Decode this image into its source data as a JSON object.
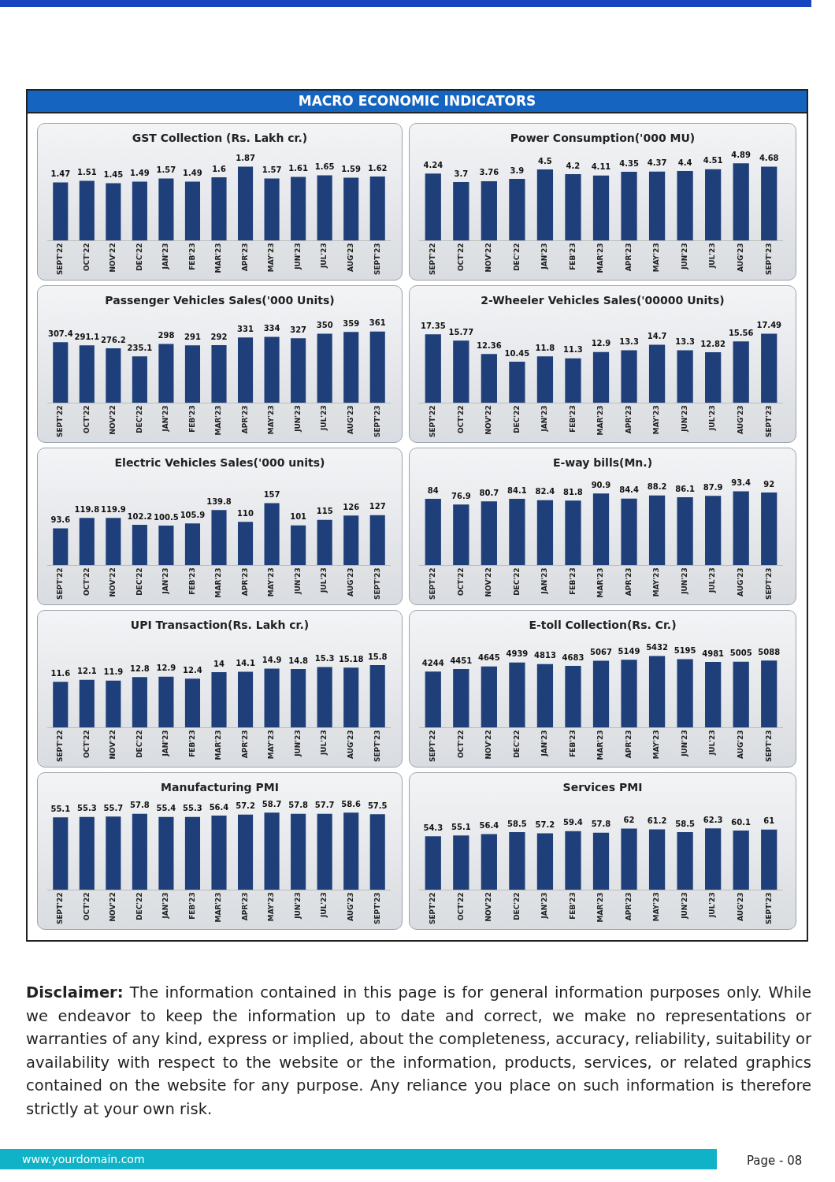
{
  "chart_data": [
    {
      "type": "other",
      "title": "MACRO ECONOMIC INDICATORS"
    },
    {
      "type": "bar",
      "title": "GST Collection (Rs. Lakh cr.)",
      "categories": [
        "SEPT'22",
        "OCT'22",
        "NOV'22",
        "DEC'22",
        "JAN'23",
        "FEB'23",
        "MAR'23",
        "APR'23",
        "MAY'23",
        "JUN'23",
        "JUL'23",
        "AUG'23",
        "SEPT'23"
      ],
      "values": [
        1.47,
        1.51,
        1.45,
        1.49,
        1.57,
        1.49,
        1.6,
        1.87,
        1.57,
        1.61,
        1.65,
        1.59,
        1.62
      ],
      "color": "#1f3f7a",
      "data_labels": true
    },
    {
      "type": "bar",
      "title": "Power Consumption('000 MU)",
      "categories": [
        "SEPT'22",
        "OCT'22",
        "NOV'22",
        "DEC'22",
        "JAN'23",
        "FEB'23",
        "MAR'23",
        "APR'23",
        "MAY'23",
        "JUN'23",
        "JUL'23",
        "AUG'23",
        "SEPT'23"
      ],
      "values": [
        4.24,
        3.7,
        3.76,
        3.9,
        4.5,
        4.2,
        4.11,
        4.35,
        4.37,
        4.4,
        4.51,
        4.89,
        4.68
      ],
      "color": "#1f3f7a",
      "data_labels": true
    },
    {
      "type": "bar",
      "title": "Passenger Vehicles Sales('000 Units)",
      "categories": [
        "SEPT'22",
        "OCT'22",
        "NOV'22",
        "DEC'22",
        "JAN'23",
        "FEB'23",
        "MAR'23",
        "APR'23",
        "MAY'23",
        "JUN'23",
        "JUL'23",
        "AUG'23",
        "SEPT'23"
      ],
      "values": [
        307.4,
        291.1,
        276.2,
        235.1,
        298,
        291,
        292,
        331,
        334,
        327,
        350,
        359,
        361
      ],
      "color": "#1f3f7a",
      "data_labels": true
    },
    {
      "type": "bar",
      "title": "2-Wheeler Vehicles Sales('00000 Units)",
      "categories": [
        "SEPT'22",
        "OCT'22",
        "NOV'22",
        "DEC'22",
        "JAN'23",
        "FEB'23",
        "MAR'23",
        "APR'23",
        "MAY'23",
        "JUN'23",
        "JUL'23",
        "AUG'23",
        "SEPT'23"
      ],
      "values": [
        17.35,
        15.77,
        12.36,
        10.45,
        11.8,
        11.3,
        12.9,
        13.3,
        14.7,
        13.3,
        12.82,
        15.56,
        17.49
      ],
      "color": "#1f3f7a",
      "data_labels": true
    },
    {
      "type": "bar",
      "title": "Electric Vehicles Sales('000 units)",
      "categories": [
        "SEPT'22",
        "OCT'22",
        "NOV'22",
        "DEC'22",
        "JAN'23",
        "FEB'23",
        "MAR'23",
        "APR'23",
        "MAY'23",
        "JUN'23",
        "JUL'23",
        "AUG'23",
        "SEPT'23"
      ],
      "values": [
        93.6,
        119.8,
        119.9,
        102.2,
        100.5,
        105.9,
        139.8,
        110,
        157,
        101,
        115,
        126,
        127
      ],
      "color": "#1f3f7a",
      "data_labels": true
    },
    {
      "type": "bar",
      "title": "E-way bills(Mn.)",
      "categories": [
        "SEPT'22",
        "OCT'22",
        "NOV'22",
        "DEC'22",
        "JAN'23",
        "FEB'23",
        "MAR'23",
        "APR'23",
        "MAY'23",
        "JUN'23",
        "JUL'23",
        "AUG'23",
        "SEPT'23"
      ],
      "values": [
        84,
        76.9,
        80.7,
        84.1,
        82.4,
        81.8,
        90.9,
        84.4,
        88.2,
        86.1,
        87.9,
        93.4,
        92
      ],
      "color": "#1f3f7a",
      "data_labels": true
    },
    {
      "type": "bar",
      "title": "UPI Transaction(Rs. Lakh cr.)",
      "categories": [
        "SEPT'22",
        "OCT'22",
        "NOV'22",
        "DEC'22",
        "JAN'23",
        "FEB'23",
        "MAR'23",
        "APR'23",
        "MAY'23",
        "JUN'23",
        "JUL'23",
        "AUG'23",
        "SEPT'23"
      ],
      "values": [
        11.6,
        12.1,
        11.9,
        12.8,
        12.9,
        12.4,
        14,
        14.1,
        14.9,
        14.8,
        15.3,
        15.18,
        15.8
      ],
      "color": "#1f3f7a",
      "data_labels": true
    },
    {
      "type": "bar",
      "title": "E-toll Collection(Rs. Cr.)",
      "categories": [
        "SEPT'22",
        "OCT'22",
        "NOV'22",
        "DEC'22",
        "JAN'23",
        "FEB'23",
        "MAR'23",
        "APR'23",
        "MAY'23",
        "JUN'23",
        "JUL'23",
        "AUG'23",
        "SEPT'23"
      ],
      "values": [
        4244,
        4451,
        4645,
        4939,
        4813,
        4683,
        5067,
        5149,
        5432,
        5195,
        4981,
        5005,
        5088
      ],
      "color": "#1f3f7a",
      "data_labels": true
    },
    {
      "type": "bar",
      "title": "Manufacturing PMI",
      "categories": [
        "SEPT'22",
        "OCT'22",
        "NOV'22",
        "DEC'22",
        "JAN'23",
        "FEB'23",
        "MAR'23",
        "APR'23",
        "MAY'23",
        "JUN'23",
        "JUL'23",
        "AUG'23",
        "SEPT'23"
      ],
      "values": [
        55.1,
        55.3,
        55.7,
        57.8,
        55.4,
        55.3,
        56.4,
        57.2,
        58.7,
        57.8,
        57.7,
        58.6,
        57.5
      ],
      "color": "#1f3f7a",
      "data_labels": true
    },
    {
      "type": "bar",
      "title": "Services PMI",
      "categories": [
        "SEPT'22",
        "OCT'22",
        "NOV'22",
        "DEC'22",
        "JAN'23",
        "FEB'23",
        "MAR'23",
        "APR'23",
        "MAY'23",
        "JUN'23",
        "JUL'23",
        "AUG'23",
        "SEPT'23"
      ],
      "values": [
        54.3,
        55.1,
        56.4,
        58.5,
        57.2,
        59.4,
        57.8,
        62,
        61.2,
        58.5,
        62.3,
        60.1,
        61
      ],
      "color": "#1f3f7a",
      "data_labels": true
    },
    {
      "type": "other",
      "annotations": [
        "Disclaimer: The information contained in this page is for general information purposes only.  While we endeavor to keep the information up to date and correct, we make no representations or warranties of any kind, express or implied, about the completeness, accuracy, reliability, suitability or availability with respect to the website or the information, products, services, or related graphics contained on the website for any purpose. Any reliance you place on such information is therefore strictly at your own risk.",
        "www.yourdomain.com",
        "Page - 08"
      ]
    }
  ]
}
